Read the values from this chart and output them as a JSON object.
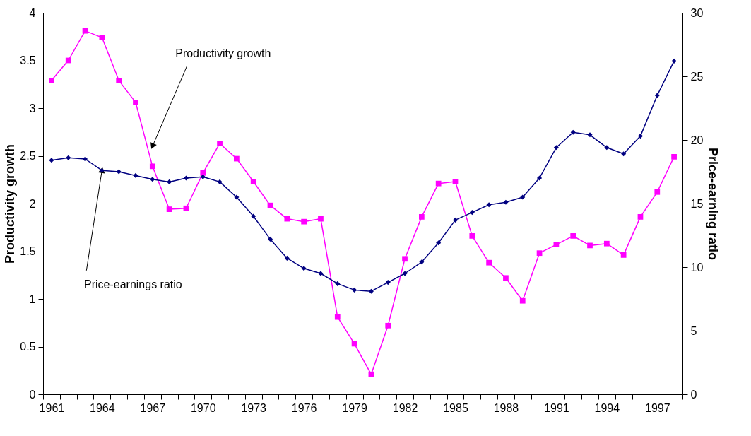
{
  "chart_data": {
    "type": "line",
    "categories": [
      "1961",
      null,
      null,
      "1964",
      null,
      null,
      "1967",
      null,
      null,
      "1970",
      null,
      null,
      "1973",
      null,
      null,
      "1976",
      null,
      null,
      "1979",
      null,
      null,
      "1982",
      null,
      null,
      "1985",
      null,
      null,
      "1988",
      null,
      null,
      "1991",
      null,
      null,
      "1994",
      null,
      null,
      "1997",
      null
    ],
    "series": [
      {
        "color": "#ff00ff",
        "marker": "square",
        "values": [
          3.29,
          3.5,
          3.81,
          3.74,
          3.29,
          3.06,
          2.39,
          1.94,
          1.95,
          2.32,
          2.63,
          2.47,
          2.23,
          1.98,
          1.84,
          1.81,
          1.84,
          0.81,
          0.53,
          0.21,
          0.72,
          1.42,
          1.86,
          2.21,
          2.23,
          1.66,
          1.38,
          1.22,
          0.98,
          1.48,
          1.57,
          1.66,
          1.56,
          1.58,
          1.46,
          1.86,
          2.12,
          2.49
        ]
      },
      {
        "color": "#000080",
        "marker": "diamond",
        "axis": "y2",
        "values": [
          18.4,
          18.6,
          18.5,
          17.6,
          17.5,
          17.2,
          16.9,
          16.7,
          17.0,
          17.1,
          16.7,
          15.5,
          14.0,
          12.2,
          10.7,
          9.9,
          9.5,
          8.7,
          8.2,
          8.1,
          8.8,
          9.5,
          10.4,
          11.9,
          13.7,
          14.3,
          14.9,
          15.1,
          15.5,
          17.0,
          19.4,
          20.6,
          20.4,
          19.4,
          18.9,
          20.3,
          23.5,
          26.2
        ]
      }
    ],
    "ylabel": "Productivity growth",
    "y2label": "Price-earning ratio",
    "ylim": [
      0,
      4
    ],
    "yticks": [
      0,
      0.5,
      1,
      1.5,
      2,
      2.5,
      3,
      3.5,
      4
    ],
    "y2lim": [
      0,
      30
    ],
    "y2ticks": [
      0,
      5,
      10,
      15,
      20,
      25,
      30
    ],
    "annotations": [
      {
        "text": "Productivity growth",
        "x": "1967",
        "y": 2.6
      },
      {
        "text": "Price-earnings ratio",
        "x": "1964",
        "y": 2.35
      }
    ],
    "grid": false
  }
}
